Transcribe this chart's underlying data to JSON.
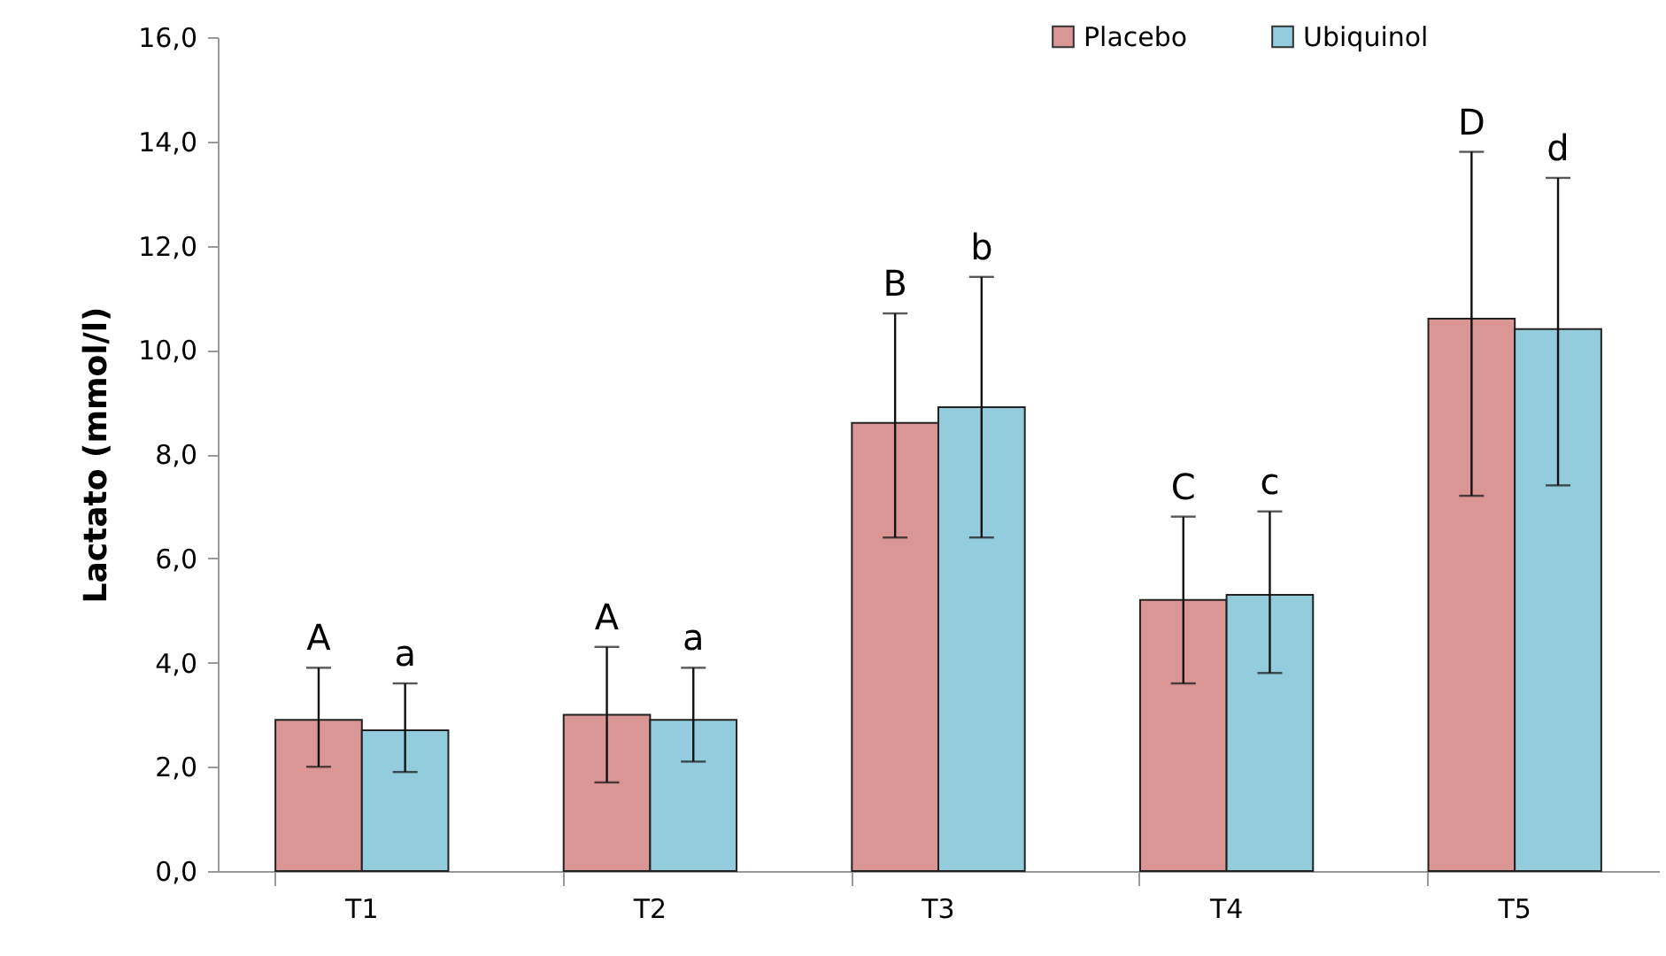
{
  "chart_data": {
    "type": "bar",
    "ylabel": "Lactato (mmol/l)",
    "categories": [
      "T1",
      "T2",
      "T3",
      "T4",
      "T5"
    ],
    "series": [
      {
        "name": "Placebo",
        "color": "#d99694",
        "values": [
          2.9,
          3.0,
          8.6,
          5.2,
          10.6
        ],
        "errors": [
          [
            2.0,
            3.9
          ],
          [
            1.7,
            4.3
          ],
          [
            6.4,
            10.7
          ],
          [
            3.6,
            6.8
          ],
          [
            7.2,
            13.8
          ]
        ]
      },
      {
        "name": "Ubiquinol",
        "color": "#93cddd",
        "values": [
          2.7,
          2.9,
          8.9,
          5.3,
          10.4
        ],
        "errors": [
          [
            1.9,
            3.6
          ],
          [
            2.1,
            3.9
          ],
          [
            6.4,
            11.4
          ],
          [
            3.8,
            6.9
          ],
          [
            7.4,
            13.3
          ]
        ]
      }
    ],
    "ylim": [
      0,
      16
    ],
    "yticks": [
      {
        "value": 0,
        "label": "0,0"
      },
      {
        "value": 2,
        "label": "2,0"
      },
      {
        "value": 4,
        "label": "4,0"
      },
      {
        "value": 6,
        "label": "6,0"
      },
      {
        "value": 8,
        "label": "8,0"
      },
      {
        "value": 10,
        "label": "10,0"
      },
      {
        "value": 12,
        "label": "12,0"
      },
      {
        "value": 14,
        "label": "14,0"
      },
      {
        "value": 16,
        "label": "16,0"
      }
    ],
    "annotations": [
      "A",
      "a",
      "A",
      "a",
      "B",
      "b",
      "C",
      "c",
      "D",
      "d"
    ],
    "legend": "top right",
    "grid": false
  }
}
